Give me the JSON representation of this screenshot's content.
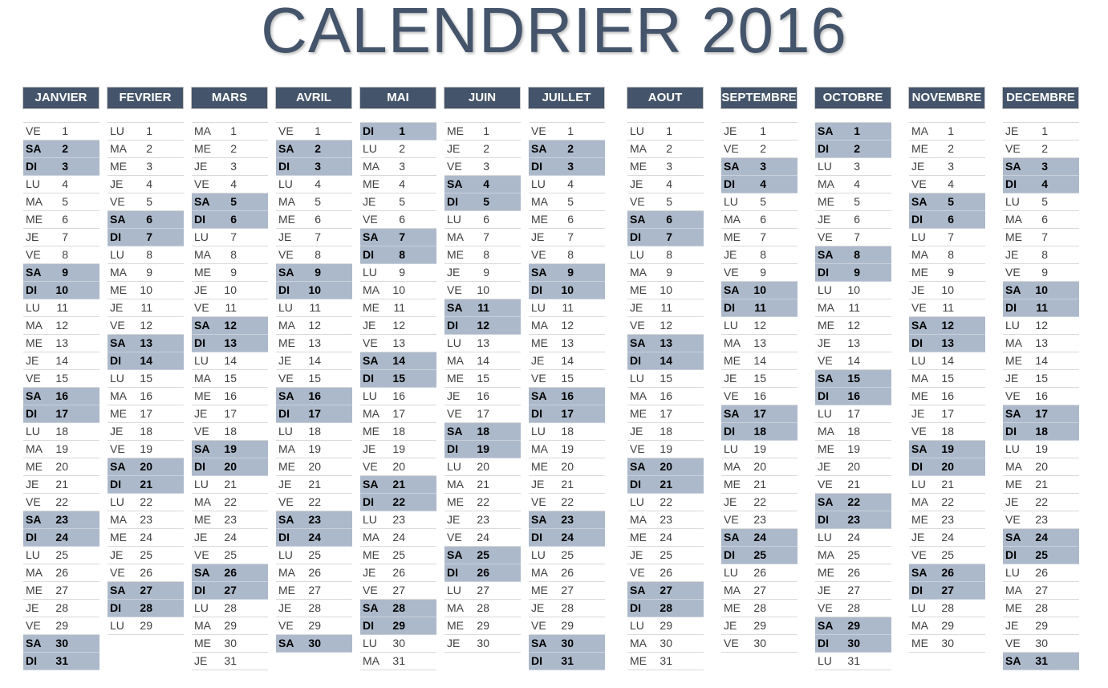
{
  "title": "CALENDRIER 2016",
  "colors": {
    "header_bg": "#44546a",
    "weekend_bg": "#acb9ca",
    "title": "#44546a"
  },
  "weekday_labels": [
    "LU",
    "MA",
    "ME",
    "JE",
    "VE",
    "SA",
    "DI"
  ],
  "weekend_labels": [
    "SA",
    "DI"
  ],
  "months": [
    {
      "name": "JANVIER",
      "first_weekday": "VE",
      "days": 31
    },
    {
      "name": "FEVRIER",
      "first_weekday": "LU",
      "days": 29
    },
    {
      "name": "MARS",
      "first_weekday": "MA",
      "days": 31
    },
    {
      "name": "AVRIL",
      "first_weekday": "VE",
      "days": 30
    },
    {
      "name": "MAI",
      "first_weekday": "DI",
      "days": 31
    },
    {
      "name": "JUIN",
      "first_weekday": "ME",
      "days": 30
    },
    {
      "name": "JUILLET",
      "first_weekday": "VE",
      "days": 31
    },
    {
      "name": "AOUT",
      "first_weekday": "LU",
      "days": 31
    },
    {
      "name": "SEPTEMBRE",
      "first_weekday": "JE",
      "days": 30
    },
    {
      "name": "OCTOBRE",
      "first_weekday": "SA",
      "days": 31
    },
    {
      "name": "NOVEMBRE",
      "first_weekday": "MA",
      "days": 30
    },
    {
      "name": "DECEMBRE",
      "first_weekday": "JE",
      "days": 31
    }
  ]
}
